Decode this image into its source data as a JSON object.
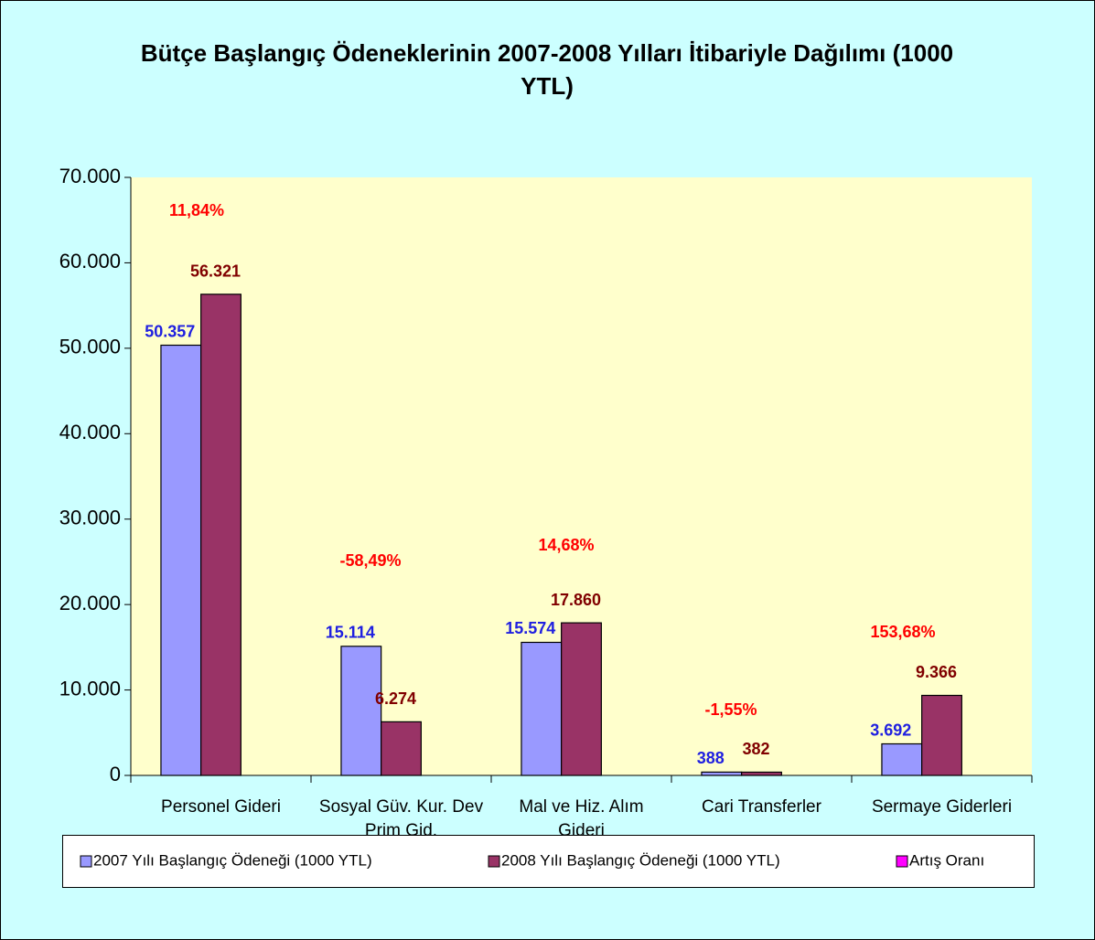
{
  "chart_data": {
    "type": "bar",
    "title": "Bütçe Başlangıç Ödeneklerinin 2007-2008 Yılları İtibariyle Dağılımı (1000 YTL)",
    "categories": [
      "Personel Gideri",
      "Sosyal Güv. Kur. Dev Prim Gid.",
      "Mal ve Hiz. Alım Gideri",
      "Cari Transferler",
      "Sermaye Giderleri"
    ],
    "series": [
      {
        "name": "2007 Yılı Başlangıç Ödeneği (1000 YTL)",
        "color": "#9999ff",
        "label_color": "#2020e0",
        "values": [
          50357,
          15114,
          15574,
          388,
          3692
        ],
        "value_labels": [
          "50.357",
          "15.114",
          "15.574",
          "388",
          "3.692"
        ]
      },
      {
        "name": "2008 Yılı Başlangıç Ödeneği (1000 YTL)",
        "color": "#993366",
        "label_color": "#800000",
        "values": [
          56321,
          6274,
          17860,
          382,
          9366
        ],
        "value_labels": [
          "56.321",
          "6.274",
          "17.860",
          "382",
          "9.366"
        ]
      },
      {
        "name": "Artış Oranı",
        "color": "#ff00ff",
        "label_color": "#ff0000",
        "values": [
          11.84,
          -58.49,
          14.68,
          -1.55,
          153.68
        ],
        "value_labels": [
          "11,84%",
          "-58,49%",
          "14,68%",
          "-1,55%",
          "153,68%"
        ]
      }
    ],
    "ylim": [
      0,
      70000
    ],
    "yticks": [
      0,
      {
        "value": 10000,
        "label": "10.000"
      },
      {
        "value": 20000,
        "label": "20.000"
      },
      {
        "value": 30000,
        "label": "30.000"
      },
      {
        "value": 40000,
        "label": "40.000"
      },
      {
        "value": 50000,
        "label": "50.000"
      },
      {
        "value": 60000,
        "label": "60.000"
      },
      {
        "value": 70000,
        "label": "70.000"
      }
    ],
    "legend": "bottom"
  }
}
